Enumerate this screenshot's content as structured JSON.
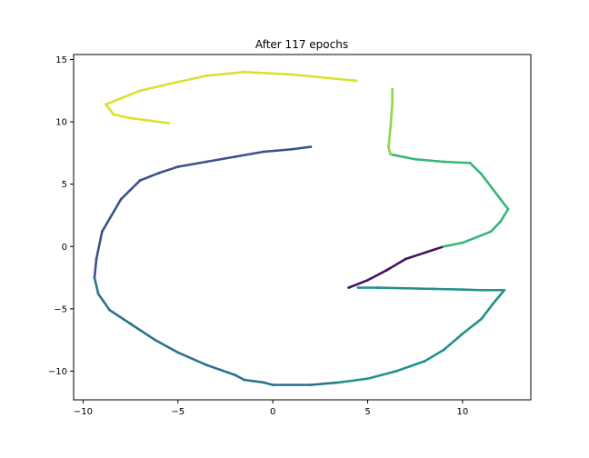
{
  "chart_data": {
    "type": "scatter",
    "title": "After 117 epochs",
    "xlabel": "",
    "ylabel": "",
    "xlim": [
      -10.5,
      13.6
    ],
    "ylim": [
      -12.3,
      15.4
    ],
    "xticks": [
      -10,
      -5,
      0,
      5,
      10
    ],
    "yticks": [
      -10,
      -5,
      0,
      5,
      10,
      15
    ],
    "grid": false,
    "colormap": "viridis",
    "series": [
      {
        "color": "#471164",
        "points": [
          [
            4.0,
            -3.3
          ],
          [
            5.0,
            -2.7
          ],
          [
            6.0,
            -1.9
          ],
          [
            7.0,
            -1.0
          ],
          [
            8.0,
            -0.5
          ],
          [
            9.0,
            0.0
          ]
        ]
      },
      {
        "color": "#3b528b",
        "points": [
          [
            2.0,
            8.0
          ],
          [
            1.0,
            7.8
          ],
          [
            -0.5,
            7.6
          ],
          [
            -2.0,
            7.2
          ],
          [
            -3.5,
            6.8
          ],
          [
            -5.0,
            6.4
          ],
          [
            -6.0,
            5.9
          ],
          [
            -7.0,
            5.3
          ],
          [
            -8.0,
            3.8
          ],
          [
            -9.0,
            1.2
          ],
          [
            -9.3,
            -1.0
          ],
          [
            -9.4,
            -2.5
          ]
        ]
      },
      {
        "color": "#2c728e",
        "points": [
          [
            -9.4,
            -2.5
          ],
          [
            -9.2,
            -3.8
          ],
          [
            -8.6,
            -5.1
          ],
          [
            -7.5,
            -6.2
          ],
          [
            -6.2,
            -7.5
          ],
          [
            -5.0,
            -8.5
          ],
          [
            -3.5,
            -9.5
          ],
          [
            -2.0,
            -10.3
          ],
          [
            -1.5,
            -10.7
          ],
          [
            -0.5,
            -10.9
          ],
          [
            0.0,
            -11.1
          ],
          [
            2.0,
            -11.1
          ],
          [
            3.5,
            -10.9
          ]
        ]
      },
      {
        "color": "#21918c",
        "points": [
          [
            3.5,
            -10.9
          ],
          [
            5.0,
            -10.6
          ],
          [
            6.5,
            -10.0
          ],
          [
            8.0,
            -9.2
          ],
          [
            9.0,
            -8.3
          ],
          [
            10.0,
            -7.0
          ],
          [
            11.0,
            -5.8
          ],
          [
            11.6,
            -4.6
          ],
          [
            12.2,
            -3.5
          ],
          [
            11.0,
            -3.5
          ],
          [
            10.0,
            -3.45
          ],
          [
            8.5,
            -3.4
          ],
          [
            7.0,
            -3.35
          ],
          [
            5.5,
            -3.3
          ],
          [
            4.5,
            -3.3
          ]
        ]
      },
      {
        "color": "#35b779",
        "points": [
          [
            9.0,
            0.0
          ],
          [
            10.0,
            0.3
          ],
          [
            11.5,
            1.2
          ],
          [
            12.0,
            2.0
          ],
          [
            12.4,
            3.0
          ],
          [
            12.0,
            3.8
          ],
          [
            11.0,
            5.8
          ],
          [
            10.4,
            6.7
          ],
          [
            9.0,
            6.8
          ],
          [
            7.5,
            7.0
          ],
          [
            6.2,
            7.4
          ]
        ]
      },
      {
        "color": "#8fd744",
        "points": [
          [
            6.2,
            7.4
          ],
          [
            6.1,
            8.0
          ],
          [
            6.2,
            9.5
          ],
          [
            6.3,
            11.5
          ],
          [
            6.3,
            12.6
          ]
        ]
      },
      {
        "color": "#d9e22b",
        "points": [
          [
            4.4,
            13.3
          ],
          [
            3.0,
            13.5
          ],
          [
            1.0,
            13.8
          ],
          [
            -1.5,
            14.0
          ],
          [
            -3.5,
            13.7
          ],
          [
            -5.0,
            13.2
          ],
          [
            -7.0,
            12.5
          ],
          [
            -8.8,
            11.4
          ],
          [
            -8.4,
            10.6
          ],
          [
            -7.5,
            10.3
          ],
          [
            -6.5,
            10.1
          ],
          [
            -5.5,
            9.9
          ]
        ]
      }
    ]
  }
}
